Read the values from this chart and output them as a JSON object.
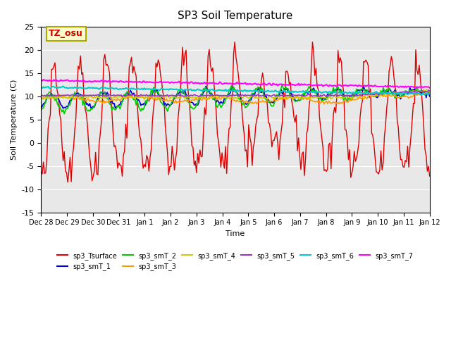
{
  "title": "SP3 Soil Temperature",
  "ylabel": "Soil Temperature (C)",
  "xlabel": "Time",
  "ylim": [
    -15,
    25
  ],
  "bg_color": "#e8e8e8",
  "annotation_text": "TZ_osu",
  "annotation_color": "#cc0000",
  "annotation_bg": "#ffffcc",
  "annotation_border": "#aaaa00",
  "series_colors": {
    "sp3_Tsurface": "#dd0000",
    "sp3_smT_1": "#0000cc",
    "sp3_smT_2": "#00cc00",
    "sp3_smT_3": "#ff9900",
    "sp3_smT_4": "#cccc00",
    "sp3_smT_5": "#9933cc",
    "sp3_smT_6": "#00cccc",
    "sp3_smT_7": "#ff00ff"
  },
  "tick_labels": [
    "Dec 28",
    "Dec 29",
    "Dec 30",
    "Dec 31",
    "Jan 1",
    "Jan 2",
    "Jan 3",
    "Jan 4",
    "Jan 5",
    "Jan 6",
    "Jan 7",
    "Jan 8",
    "Jan 9",
    "Jan 10",
    "Jan 11",
    "Jan 12"
  ],
  "num_points": 336,
  "yticks": [
    -15,
    -10,
    -5,
    0,
    5,
    10,
    15,
    20,
    25
  ]
}
